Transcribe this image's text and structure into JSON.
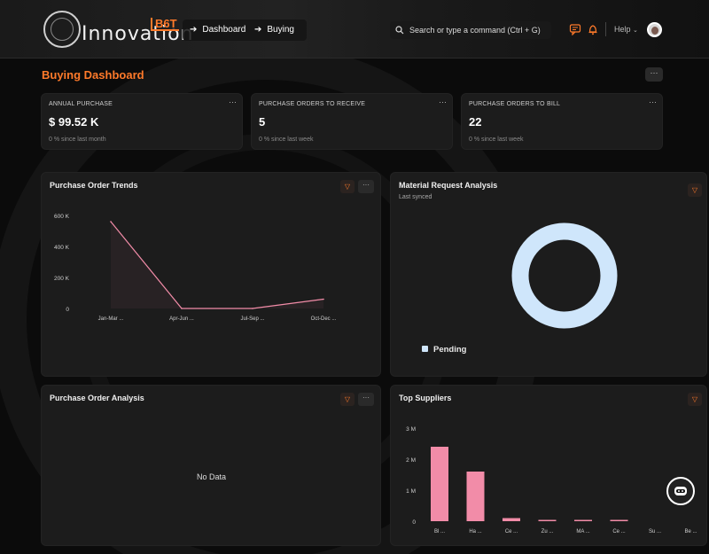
{
  "brand": {
    "name": "Innovation",
    "badge": "B6T"
  },
  "breadcrumb": [
    {
      "label": "Dashboard"
    },
    {
      "label": "Buying"
    }
  ],
  "search": {
    "placeholder": "Search or type a command (Ctrl + G)"
  },
  "header": {
    "help_label": "Help"
  },
  "page": {
    "title": "Buying Dashboard",
    "menu_label": "···"
  },
  "kpis": [
    {
      "label": "ANNUAL PURCHASE",
      "value": "$ 99.52 K",
      "note": "0 % since last month",
      "menu": "···"
    },
    {
      "label": "PURCHASE ORDERS TO RECEIVE",
      "value": "5",
      "note": "0 % since last week",
      "menu": "···"
    },
    {
      "label": "PURCHASE ORDERS TO BILL",
      "value": "22",
      "note": "0 % since last week",
      "menu": "···"
    }
  ],
  "cards": {
    "po_trends": {
      "title": "Purchase Order Trends",
      "menu": "···"
    },
    "material_request": {
      "title": "Material Request Analysis",
      "subtitle": "Last synced"
    },
    "po_analysis": {
      "title": "Purchase Order Analysis",
      "menu": "···",
      "empty": "No Data"
    },
    "top_suppliers": {
      "title": "Top Suppliers"
    }
  },
  "colors": {
    "accent": "#ff7a2a",
    "line": "#f28ca8",
    "donut": "#cfe6fb",
    "bar": "#f28ca8"
  },
  "chart_data": [
    {
      "type": "line",
      "title": "Purchase Order Trends",
      "categories": [
        "Jan-Mar ...",
        "Apr-Jun ...",
        "Jul-Sep ...",
        "Oct-Dec ..."
      ],
      "series": [
        {
          "values": [
            560000,
            0,
            0,
            60000
          ]
        }
      ],
      "yticks": [
        "600 K",
        "400 K",
        "200 K",
        "0"
      ],
      "ylim": [
        0,
        600000
      ],
      "grid": false
    },
    {
      "type": "pie",
      "title": "Material Request Analysis",
      "variant": "donut",
      "categories": [
        "Pending"
      ],
      "values": [
        100
      ],
      "legend": "bottom-left"
    },
    {
      "type": "bar",
      "title": "Top Suppliers",
      "categories": [
        "Bl ...",
        "Ha ...",
        "Ce ...",
        "Zu ...",
        "MA ...",
        "Ce ...",
        "Su ...",
        "Be ..."
      ],
      "values": [
        2400000,
        1600000,
        100000,
        40000,
        40000,
        30000,
        0,
        0
      ],
      "yticks": [
        "3 M",
        "2 M",
        "1 M",
        "0"
      ],
      "ylim": [
        0,
        3000000
      ],
      "grid": false
    }
  ]
}
